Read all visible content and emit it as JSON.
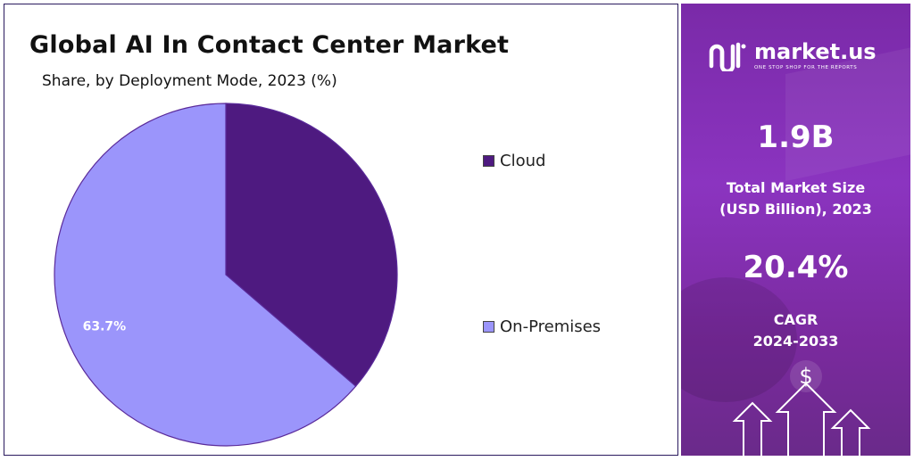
{
  "title": "Global AI In Contact Center Market",
  "subtitle": "Share, by Deployment Mode, 2023 (%)",
  "chart_data": {
    "type": "pie",
    "title": "Global AI In Contact Center Market",
    "subtitle": "Share, by Deployment Mode, 2023 (%)",
    "categories": [
      "Cloud",
      "On-Premises"
    ],
    "values": [
      36.3,
      63.7
    ],
    "data_labels": [
      "",
      "63.7%"
    ],
    "colors": [
      "#4e1a80",
      "#9b95fb"
    ],
    "legend_position": "right"
  },
  "brand": {
    "name": "market.us",
    "tagline": "ONE STOP SHOP FOR THE REPORTS"
  },
  "stats": {
    "market_size_value": "1.9B",
    "market_size_label_line1": "Total Market Size",
    "market_size_label_line2": "(USD Billion), 2023",
    "cagr_value": "20.4%",
    "cagr_label_line1": "CAGR",
    "cagr_label_line2": "2024-2033"
  },
  "icons": {
    "dollar": "$",
    "logo": "market-us-logo-icon",
    "arrows": "growth-arrows-icon"
  }
}
